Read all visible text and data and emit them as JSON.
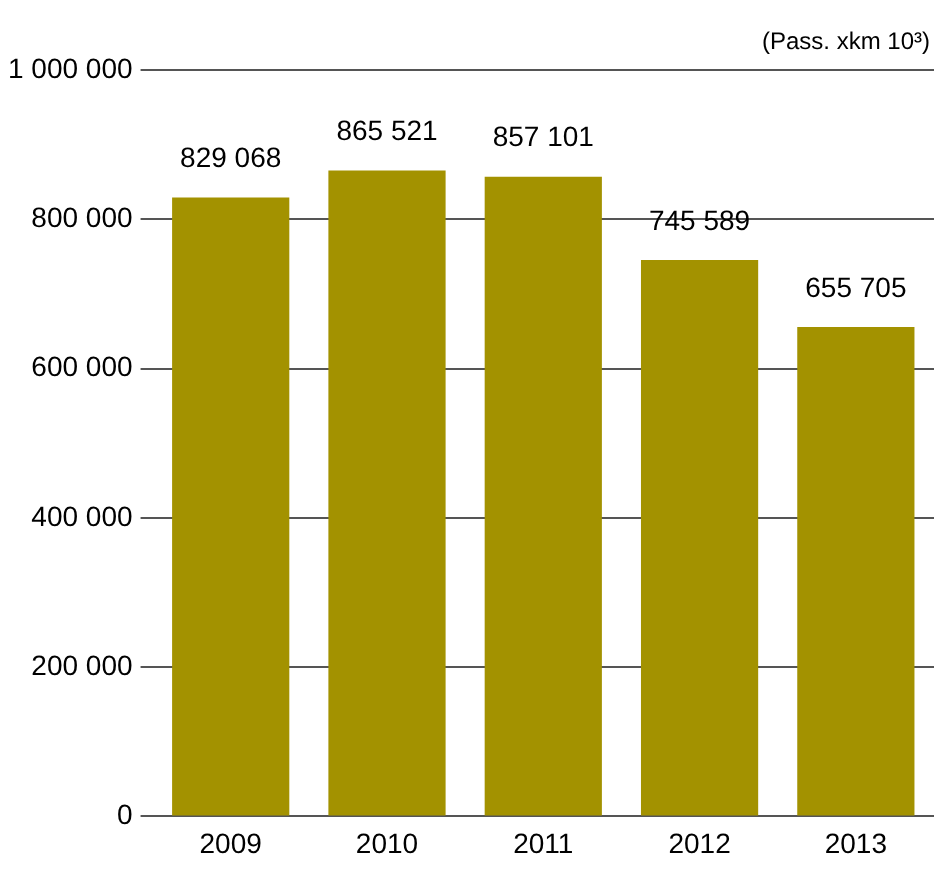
{
  "chart_data": {
    "type": "bar",
    "ylabel": "(Pass. xkm 10³)",
    "categories": [
      "2009",
      "2010",
      "2011",
      "2012",
      "2013"
    ],
    "values": [
      829068,
      865521,
      857101,
      745589,
      655705
    ],
    "color": "#a39200",
    "ylim": [
      0,
      1000000
    ],
    "yticks": [
      0,
      200000,
      400000,
      600000,
      800000,
      1000000
    ],
    "grid": "y",
    "data_labels": true,
    "legend": false
  }
}
